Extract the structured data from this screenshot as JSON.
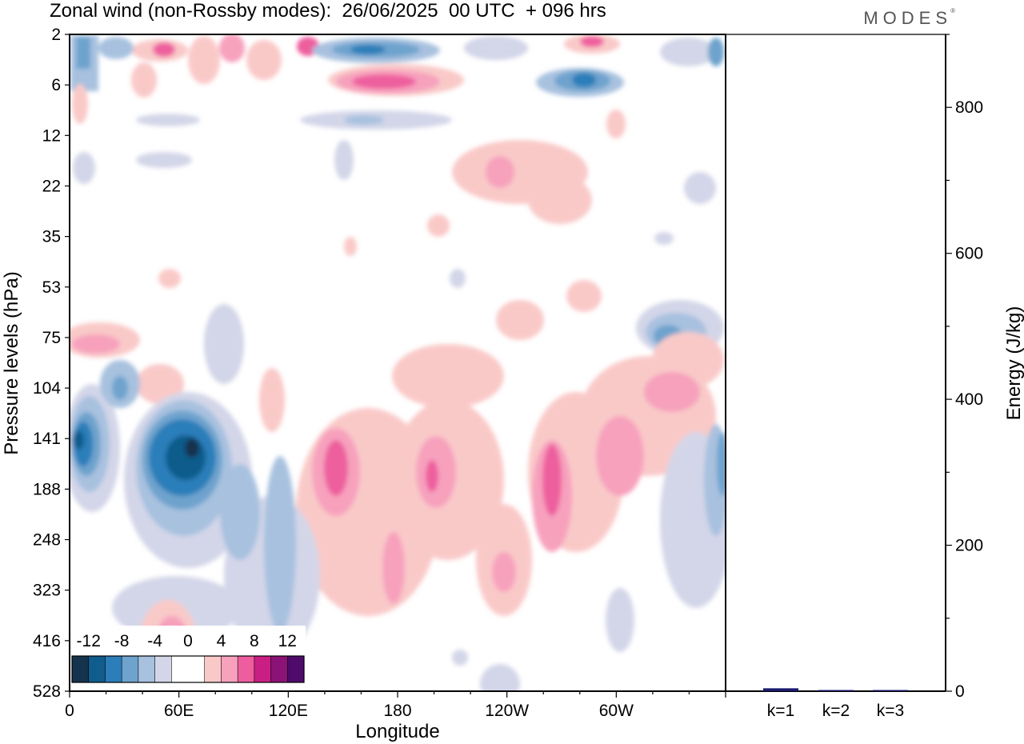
{
  "header": {
    "title": "Zonal wind (non-Rossby modes):  26/06/2025  00 UTC  + 096 hrs",
    "logo": "MODES",
    "logo_mark": "®"
  },
  "chart_data": [
    {
      "type": "heatmap",
      "xlabel": "Longitude",
      "ylabel": "Pressure levels (hPa)",
      "x_ticks": [
        "0",
        "60E",
        "120E",
        "180",
        "120W",
        "60W"
      ],
      "y_ticks": [
        "2",
        "6",
        "12",
        "22",
        "35",
        "53",
        "75",
        "104",
        "141",
        "188",
        "248",
        "323",
        "416",
        "528"
      ],
      "colorbar": {
        "labels": [
          "-12",
          "-8",
          "-4",
          "0",
          "4",
          "8",
          "12"
        ],
        "colors": [
          "#16334d",
          "#105c8c",
          "#2b7eb9",
          "#6ea3cd",
          "#a7c1df",
          "#d3d6e8",
          "#ffffff",
          "#ffffff",
          "#f9c9c8",
          "#f7a1bd",
          "#ee5e9e",
          "#c91f84",
          "#8b1276",
          "#4f0b6b"
        ]
      },
      "features": [
        {
          "lon": 20,
          "level": 141,
          "value": -12,
          "desc": "strong easterly core"
        },
        {
          "lon": 60,
          "level": 160,
          "value": -12,
          "desc": "strong easterly core"
        },
        {
          "lon": 140,
          "level": 160,
          "value": 8,
          "desc": "westerly core"
        },
        {
          "lon": 190,
          "level": 160,
          "value": 8,
          "desc": "westerly core"
        },
        {
          "lon": 245,
          "level": 170,
          "value": 8,
          "desc": "westerly core"
        },
        {
          "lon": 290,
          "level": 150,
          "value": 8,
          "desc": "westerly core"
        },
        {
          "lon": 170,
          "level": 6,
          "value": 12,
          "desc": "upper westerly band"
        },
        {
          "lon": 265,
          "level": 6,
          "value": -12,
          "desc": "upper easterly band"
        },
        {
          "lon": 320,
          "level": 80,
          "value": -8,
          "desc": "easterly band"
        }
      ]
    },
    {
      "type": "bar",
      "categories": [
        "k=1",
        "k=2",
        "k=3"
      ],
      "values": [
        4,
        1.5,
        1
      ],
      "ylabel": "Energy (J/kg)",
      "ylim": [
        0,
        900
      ],
      "y_ticks": [
        "0",
        "200",
        "400",
        "600",
        "800"
      ],
      "color": "#1a1a6e"
    }
  ]
}
